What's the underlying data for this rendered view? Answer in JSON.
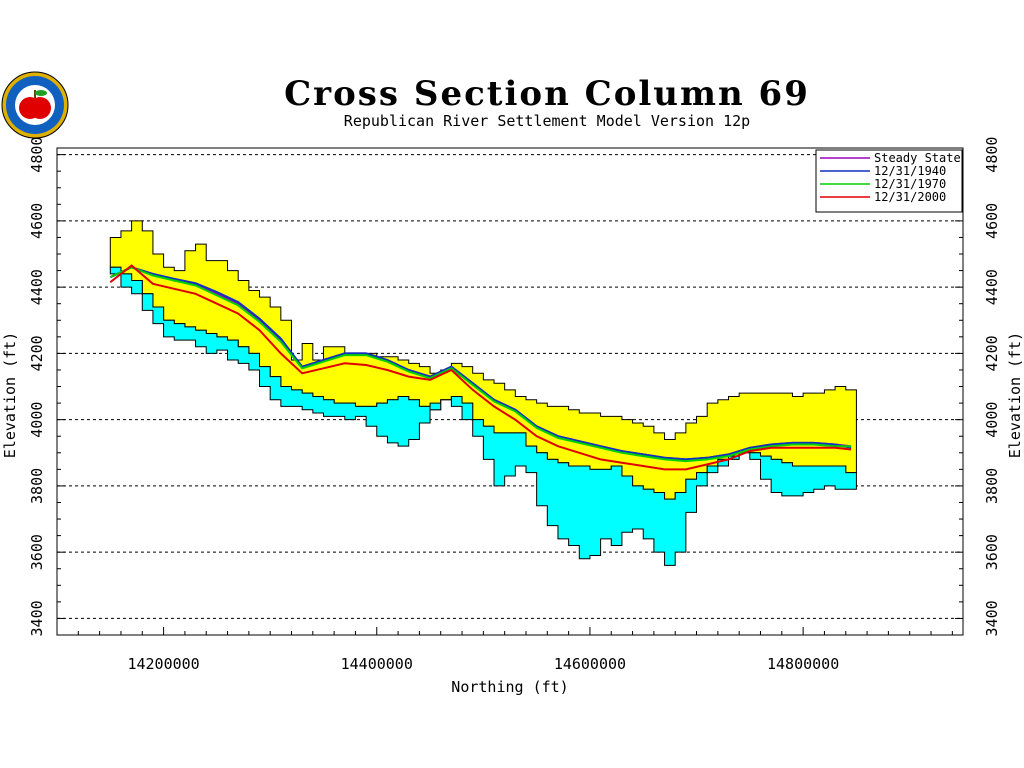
{
  "chart_data": {
    "type": "line",
    "title": "Cross Section Column 69",
    "subtitle": "Republican River Settlement Model Version 12p",
    "xlabel": "Northing (ft)",
    "ylabel": "Elevation (ft)",
    "xlim": [
      14100000,
      14950000
    ],
    "ylim": [
      3350,
      4820
    ],
    "x_ticks": [
      14200000,
      14400000,
      14600000,
      14800000
    ],
    "y_ticks": [
      3400,
      3600,
      3800,
      4000,
      4200,
      4400,
      4600,
      4800
    ],
    "grid": "horizontal dashed",
    "legend_position": "top-right",
    "bands": [
      {
        "role": "upper layer (yellow)",
        "color": "#ffff00",
        "x": [
          14150000,
          14160000,
          14170000,
          14180000,
          14190000,
          14200000,
          14210000,
          14220000,
          14230000,
          14240000,
          14250000,
          14260000,
          14270000,
          14280000,
          14290000,
          14300000,
          14310000,
          14320000,
          14330000,
          14340000,
          14350000,
          14360000,
          14370000,
          14380000,
          14390000,
          14400000,
          14410000,
          14420000,
          14430000,
          14440000,
          14450000,
          14460000,
          14470000,
          14480000,
          14490000,
          14500000,
          14510000,
          14520000,
          14530000,
          14540000,
          14550000,
          14560000,
          14570000,
          14580000,
          14590000,
          14600000,
          14610000,
          14620000,
          14630000,
          14640000,
          14650000,
          14660000,
          14670000,
          14680000,
          14690000,
          14700000,
          14710000,
          14720000,
          14730000,
          14740000,
          14750000,
          14760000,
          14770000,
          14780000,
          14790000,
          14800000,
          14810000,
          14820000,
          14830000,
          14840000
        ],
        "top": [
          4550,
          4570,
          4600,
          4570,
          4500,
          4460,
          4450,
          4510,
          4530,
          4480,
          4480,
          4450,
          4420,
          4390,
          4370,
          4340,
          4300,
          4180,
          4230,
          4180,
          4220,
          4220,
          4200,
          4200,
          4200,
          4190,
          4190,
          4180,
          4170,
          4160,
          4140,
          4150,
          4170,
          4160,
          4140,
          4120,
          4110,
          4090,
          4070,
          4060,
          4050,
          4040,
          4040,
          4030,
          4020,
          4020,
          4010,
          4010,
          4000,
          3990,
          3980,
          3960,
          3940,
          3960,
          3990,
          4010,
          4050,
          4060,
          4070,
          4080,
          4080,
          4080,
          4080,
          4080,
          4070,
          4080,
          4080,
          4090,
          4100,
          4090
        ],
        "bottom": [
          4460,
          4440,
          4420,
          4380,
          4340,
          4300,
          4290,
          4280,
          4270,
          4260,
          4250,
          4240,
          4220,
          4200,
          4160,
          4130,
          4100,
          4090,
          4080,
          4070,
          4060,
          4050,
          4050,
          4040,
          4040,
          4050,
          4060,
          4070,
          4060,
          4040,
          4030,
          4060,
          4070,
          4050,
          4000,
          3980,
          3960,
          3960,
          3960,
          3920,
          3900,
          3880,
          3870,
          3860,
          3860,
          3850,
          3850,
          3860,
          3830,
          3800,
          3790,
          3780,
          3760,
          3780,
          3820,
          3840,
          3860,
          3880,
          3890,
          3900,
          3900,
          3890,
          3880,
          3870,
          3860,
          3860,
          3860,
          3860,
          3860,
          3840
        ]
      },
      {
        "role": "lower layer (cyan)",
        "color": "#00ffff",
        "x": [
          14150000,
          14160000,
          14170000,
          14180000,
          14190000,
          14200000,
          14210000,
          14220000,
          14230000,
          14240000,
          14250000,
          14260000,
          14270000,
          14280000,
          14290000,
          14300000,
          14310000,
          14320000,
          14330000,
          14340000,
          14350000,
          14360000,
          14370000,
          14380000,
          14390000,
          14400000,
          14410000,
          14420000,
          14430000,
          14440000,
          14450000,
          14460000,
          14470000,
          14480000,
          14490000,
          14500000,
          14510000,
          14520000,
          14530000,
          14540000,
          14550000,
          14560000,
          14570000,
          14580000,
          14590000,
          14600000,
          14610000,
          14620000,
          14630000,
          14640000,
          14650000,
          14660000,
          14670000,
          14680000,
          14690000,
          14700000,
          14710000,
          14720000,
          14730000,
          14740000,
          14750000,
          14760000,
          14770000,
          14780000,
          14790000,
          14800000,
          14810000,
          14820000,
          14830000,
          14840000
        ],
        "top": [
          4460,
          4440,
          4420,
          4380,
          4340,
          4300,
          4290,
          4280,
          4270,
          4260,
          4250,
          4240,
          4220,
          4200,
          4160,
          4130,
          4100,
          4090,
          4080,
          4070,
          4060,
          4050,
          4050,
          4040,
          4040,
          4050,
          4060,
          4070,
          4060,
          4040,
          4030,
          4060,
          4070,
          4050,
          4000,
          3980,
          3960,
          3960,
          3960,
          3920,
          3900,
          3880,
          3870,
          3860,
          3860,
          3850,
          3850,
          3860,
          3830,
          3800,
          3790,
          3780,
          3760,
          3780,
          3820,
          3840,
          3860,
          3880,
          3890,
          3900,
          3900,
          3890,
          3880,
          3870,
          3860,
          3860,
          3860,
          3860,
          3860,
          3840
        ],
        "bottom": [
          4440,
          4400,
          4380,
          4330,
          4290,
          4250,
          4240,
          4240,
          4220,
          4200,
          4210,
          4180,
          4170,
          4150,
          4100,
          4060,
          4040,
          4040,
          4030,
          4020,
          4010,
          4010,
          4000,
          4010,
          3980,
          3950,
          3930,
          3920,
          3940,
          3990,
          4050,
          4060,
          4040,
          4000,
          3950,
          3880,
          3800,
          3830,
          3860,
          3840,
          3740,
          3680,
          3640,
          3620,
          3580,
          3590,
          3640,
          3620,
          3660,
          3670,
          3640,
          3600,
          3560,
          3600,
          3720,
          3800,
          3840,
          3860,
          3880,
          3900,
          3880,
          3820,
          3780,
          3770,
          3770,
          3780,
          3790,
          3800,
          3790,
          3790
        ]
      }
    ],
    "series": [
      {
        "name": "Steady State",
        "color": "#a000c0",
        "x": [
          14150000,
          14170000,
          14190000,
          14210000,
          14230000,
          14250000,
          14270000,
          14290000,
          14310000,
          14330000,
          14350000,
          14370000,
          14390000,
          14410000,
          14430000,
          14450000,
          14470000,
          14490000,
          14510000,
          14530000,
          14550000,
          14570000,
          14590000,
          14610000,
          14630000,
          14650000,
          14670000,
          14690000,
          14710000,
          14730000,
          14750000,
          14770000,
          14790000,
          14810000,
          14830000,
          14845000
        ],
        "y": [
          4430,
          4460,
          4440,
          4420,
          4410,
          4380,
          4350,
          4300,
          4240,
          4160,
          4180,
          4200,
          4200,
          4180,
          4150,
          4130,
          4160,
          4110,
          4060,
          4030,
          3980,
          3950,
          3935,
          3920,
          3905,
          3895,
          3885,
          3880,
          3885,
          3895,
          3915,
          3925,
          3930,
          3930,
          3925,
          3920
        ]
      },
      {
        "name": "12/31/1940",
        "color": "#1030c0",
        "x": [
          14150000,
          14170000,
          14190000,
          14210000,
          14230000,
          14250000,
          14270000,
          14290000,
          14310000,
          14330000,
          14350000,
          14370000,
          14390000,
          14410000,
          14430000,
          14450000,
          14470000,
          14490000,
          14510000,
          14530000,
          14550000,
          14570000,
          14590000,
          14610000,
          14630000,
          14650000,
          14670000,
          14690000,
          14710000,
          14730000,
          14750000,
          14770000,
          14790000,
          14810000,
          14830000,
          14845000
        ],
        "y": [
          4430,
          4460,
          4440,
          4425,
          4412,
          4385,
          4355,
          4305,
          4245,
          4160,
          4180,
          4200,
          4200,
          4180,
          4150,
          4130,
          4160,
          4110,
          4060,
          4030,
          3980,
          3950,
          3935,
          3920,
          3905,
          3895,
          3885,
          3880,
          3885,
          3895,
          3915,
          3925,
          3930,
          3930,
          3925,
          3915
        ]
      },
      {
        "name": "12/31/1970",
        "color": "#00d000",
        "x": [
          14150000,
          14170000,
          14190000,
          14210000,
          14230000,
          14250000,
          14270000,
          14290000,
          14310000,
          14330000,
          14350000,
          14370000,
          14390000,
          14410000,
          14430000,
          14450000,
          14470000,
          14490000,
          14510000,
          14530000,
          14550000,
          14570000,
          14590000,
          14610000,
          14630000,
          14650000,
          14670000,
          14690000,
          14710000,
          14730000,
          14750000,
          14770000,
          14790000,
          14810000,
          14830000,
          14845000
        ],
        "y": [
          4430,
          4460,
          4435,
          4420,
          4405,
          4375,
          4345,
          4295,
          4235,
          4155,
          4175,
          4195,
          4195,
          4175,
          4145,
          4125,
          4155,
          4105,
          4055,
          4025,
          3975,
          3945,
          3930,
          3915,
          3900,
          3890,
          3880,
          3875,
          3880,
          3890,
          3910,
          3920,
          3925,
          3925,
          3920,
          3920
        ]
      },
      {
        "name": "12/31/2000",
        "color": "#e00000",
        "x": [
          14150000,
          14170000,
          14190000,
          14210000,
          14230000,
          14250000,
          14270000,
          14290000,
          14310000,
          14330000,
          14350000,
          14370000,
          14390000,
          14410000,
          14430000,
          14450000,
          14470000,
          14490000,
          14510000,
          14530000,
          14550000,
          14570000,
          14590000,
          14610000,
          14630000,
          14650000,
          14670000,
          14690000,
          14710000,
          14730000,
          14750000,
          14770000,
          14790000,
          14810000,
          14830000,
          14845000
        ],
        "y": [
          4415,
          4465,
          4410,
          4395,
          4380,
          4350,
          4320,
          4270,
          4200,
          4140,
          4155,
          4170,
          4165,
          4150,
          4130,
          4120,
          4150,
          4090,
          4040,
          4000,
          3950,
          3920,
          3900,
          3880,
          3870,
          3860,
          3850,
          3850,
          3865,
          3880,
          3905,
          3915,
          3915,
          3915,
          3915,
          3910
        ]
      }
    ]
  },
  "logo": {
    "label": "seal",
    "seal_text": "DEPARTMENT OF NATURAL RESOURCES",
    "apple_color": "#e00000",
    "leaf_color": "#20a020",
    "ring_color": "#1060c0",
    "rim_color": "#e0b000"
  }
}
